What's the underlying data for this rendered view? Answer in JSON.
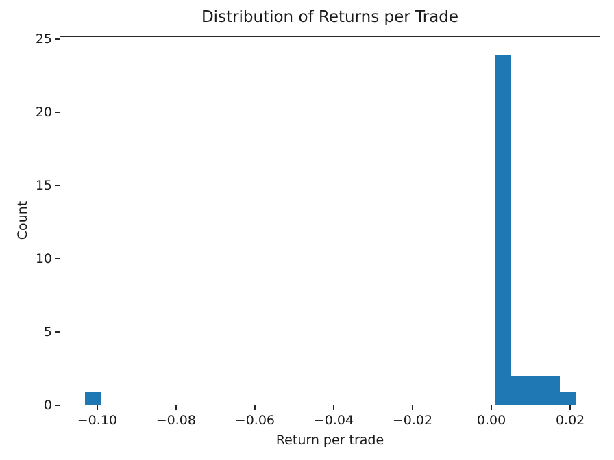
{
  "chart_data": {
    "type": "bar",
    "subtype": "histogram",
    "title": "Distribution of Returns per Trade",
    "xlabel": "Return per trade",
    "ylabel": "Count",
    "bar_color": "#1f77b4",
    "axis_color": "#262626",
    "text_color": "#1a1a1a",
    "background_color": "#ffffff",
    "grid": false,
    "legend": false,
    "xlim": [
      -0.10953,
      0.02763
    ],
    "ylim": [
      0,
      25.2
    ],
    "xticks": [
      {
        "value": -0.1,
        "label": "−0.10"
      },
      {
        "value": -0.08,
        "label": "−0.08"
      },
      {
        "value": -0.06,
        "label": "−0.06"
      },
      {
        "value": -0.04,
        "label": "−0.04"
      },
      {
        "value": -0.02,
        "label": "−0.02"
      },
      {
        "value": 0.0,
        "label": "0.00"
      },
      {
        "value": 0.02,
        "label": "0.02"
      }
    ],
    "yticks": [
      {
        "value": 0,
        "label": "0"
      },
      {
        "value": 5,
        "label": "5"
      },
      {
        "value": 10,
        "label": "10"
      },
      {
        "value": 15,
        "label": "15"
      },
      {
        "value": 20,
        "label": "20"
      },
      {
        "value": 25,
        "label": "25"
      }
    ],
    "bins": {
      "start": -0.1033,
      "width": 0.0041566,
      "counts": [
        1,
        0,
        0,
        0,
        0,
        0,
        0,
        0,
        0,
        0,
        0,
        0,
        0,
        0,
        0,
        0,
        0,
        0,
        0,
        0,
        0,
        0,
        0,
        0,
        0,
        24,
        2,
        2,
        2,
        1
      ]
    }
  }
}
